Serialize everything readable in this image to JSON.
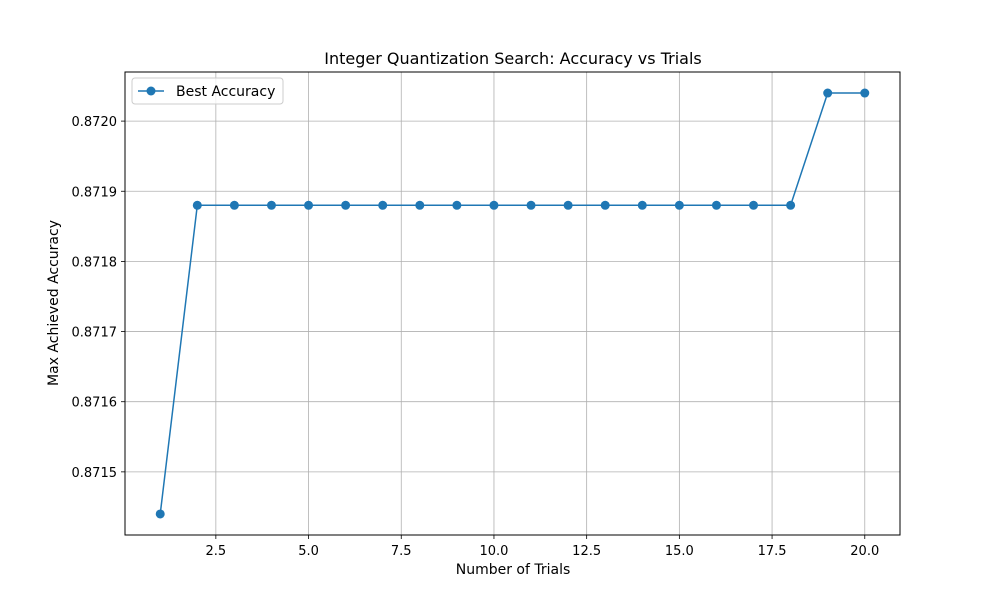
{
  "chart_data": {
    "type": "line",
    "title": "Integer Quantization Search: Accuracy vs Trials",
    "xlabel": "Number of Trials",
    "ylabel": "Max Achieved Accuracy",
    "xlim": [
      0.05,
      20.95
    ],
    "ylim": [
      0.87141,
      0.87207
    ],
    "xticks": [
      2.5,
      5.0,
      7.5,
      10.0,
      12.5,
      15.0,
      17.5,
      20.0
    ],
    "xtick_labels": [
      "2.5",
      "5.0",
      "7.5",
      "10.0",
      "12.5",
      "15.0",
      "17.5",
      "20.0"
    ],
    "yticks": [
      0.8715,
      0.8716,
      0.8717,
      0.8718,
      0.8719,
      0.872
    ],
    "ytick_labels": [
      "0.8715",
      "0.8716",
      "0.8717",
      "0.8718",
      "0.8719",
      "0.8720"
    ],
    "grid": true,
    "legend_position": "top-left",
    "color": "#1f77b4",
    "series": [
      {
        "name": "Best Accuracy",
        "x": [
          1,
          2,
          3,
          4,
          5,
          6,
          7,
          8,
          9,
          10,
          11,
          12,
          13,
          14,
          15,
          16,
          17,
          18,
          19,
          20
        ],
        "y": [
          0.87144,
          0.87188,
          0.87188,
          0.87188,
          0.87188,
          0.87188,
          0.87188,
          0.87188,
          0.87188,
          0.87188,
          0.87188,
          0.87188,
          0.87188,
          0.87188,
          0.87188,
          0.87188,
          0.87188,
          0.87188,
          0.87204,
          0.87204
        ]
      }
    ]
  }
}
